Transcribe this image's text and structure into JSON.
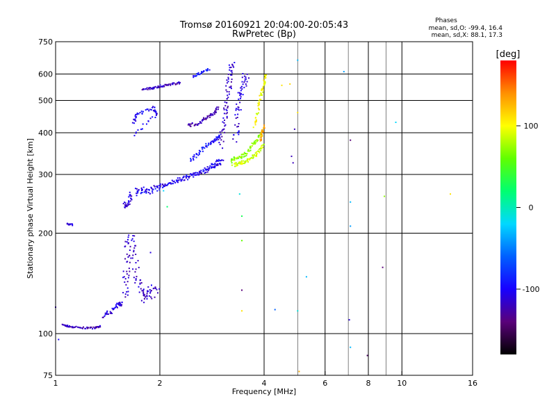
{
  "chart_data": {
    "type": "scatter",
    "title": "Tromsø 20160921 20:04:00-20:05:43",
    "subtitle": "RwPretec (Bp)",
    "xlabel": "Frequency [MHz]",
    "ylabel": "Stationary phase Virtual Height [km]",
    "x_scale": "log",
    "y_scale": "log",
    "xlim": [
      1,
      16
    ],
    "ylim": [
      75,
      750
    ],
    "x_ticks": [
      {
        "value": 1,
        "label": "1"
      },
      {
        "value": 2,
        "label": "2"
      },
      {
        "value": 4,
        "label": "4"
      },
      {
        "value": 6,
        "label": "6"
      },
      {
        "value": 8,
        "label": "8"
      },
      {
        "value": 10,
        "label": "10"
      },
      {
        "value": 16,
        "label": "16"
      }
    ],
    "y_ticks": [
      {
        "value": 75,
        "label": "75"
      },
      {
        "value": 100,
        "label": "100"
      },
      {
        "value": 200,
        "label": "200"
      },
      {
        "value": 300,
        "label": "300"
      },
      {
        "value": 400,
        "label": "400"
      },
      {
        "value": 500,
        "label": "500"
      },
      {
        "value": 600,
        "label": "600"
      },
      {
        "value": 750,
        "label": "750"
      }
    ],
    "x_grid": [
      2,
      4,
      6,
      8,
      10
    ],
    "x_minor_grid": [
      5,
      7,
      9
    ],
    "y_grid": [
      100,
      200,
      300,
      400,
      500,
      600
    ],
    "grid": true,
    "legend": {
      "title": "Phases",
      "placement": "top-right",
      "lines": [
        "mean, sd,O: -99.4, 16.4",
        "mean, sd,X: 88.1, 17.3"
      ]
    },
    "colorbar": {
      "label": "[deg]",
      "range": [
        -180,
        180
      ],
      "ticks": [
        {
          "value": 100,
          "label": "100"
        },
        {
          "value": 0,
          "label": "0"
        },
        {
          "value": -100,
          "label": "-100"
        }
      ],
      "colors": [
        "#000000",
        "#5a007a",
        "#1800ff",
        "#0060ff",
        "#00d8ff",
        "#00ff70",
        "#60ff00",
        "#ffff00",
        "#ff9000",
        "#ff0000"
      ]
    },
    "traces": [
      {
        "phase": -120,
        "spread": 0.004,
        "pts": [
          [
            1.05,
            106
          ],
          [
            1.1,
            105
          ],
          [
            1.2,
            104
          ],
          [
            1.3,
            104
          ],
          [
            1.35,
            105
          ]
        ]
      },
      {
        "phase": -115,
        "spread": 0.004,
        "pts": [
          [
            1.08,
            213
          ],
          [
            1.12,
            212
          ]
        ]
      },
      {
        "phase": -110,
        "spread": 0.01,
        "pts": [
          [
            1.38,
            113
          ],
          [
            1.45,
            117
          ],
          [
            1.52,
            122
          ],
          [
            1.55,
            124
          ]
        ]
      },
      {
        "phase": -115,
        "spread": 0.025,
        "pts": [
          [
            1.58,
            130
          ],
          [
            1.6,
            150
          ],
          [
            1.62,
            175
          ],
          [
            1.65,
            195
          ],
          [
            1.7,
            160
          ],
          [
            1.75,
            135
          ],
          [
            1.8,
            128
          ],
          [
            1.88,
            132
          ],
          [
            1.95,
            137
          ]
        ]
      },
      {
        "phase": -112,
        "spread": 0.012,
        "pts": [
          [
            1.58,
            242
          ],
          [
            1.62,
            246
          ],
          [
            1.66,
            262
          ]
        ]
      },
      {
        "phase": -108,
        "spread": 0.008,
        "pts": [
          [
            1.7,
            270
          ],
          [
            1.85,
            272
          ],
          [
            2.0,
            277
          ],
          [
            2.2,
            285
          ],
          [
            2.45,
            295
          ],
          [
            2.7,
            307
          ],
          [
            2.9,
            318
          ],
          [
            3.05,
            330
          ]
        ]
      },
      {
        "phase": -100,
        "spread": 0.008,
        "pts": [
          [
            1.7,
            262
          ],
          [
            1.9,
            266
          ],
          [
            2.1,
            280
          ],
          [
            2.3,
            292
          ],
          [
            2.55,
            302
          ],
          [
            2.8,
            318
          ],
          [
            3.0,
            335
          ]
        ]
      },
      {
        "phase": -95,
        "spread": 0.008,
        "pts": [
          [
            2.45,
            330
          ],
          [
            2.6,
            350
          ],
          [
            2.75,
            368
          ],
          [
            2.9,
            382
          ],
          [
            3.0,
            395
          ]
        ]
      },
      {
        "phase": -125,
        "spread": 0.008,
        "pts": [
          [
            2.4,
            420
          ],
          [
            2.55,
            425
          ],
          [
            2.7,
            440
          ],
          [
            2.85,
            455
          ],
          [
            2.95,
            475
          ]
        ]
      },
      {
        "phase": -120,
        "spread": 0.005,
        "pts": [
          [
            1.78,
            540
          ],
          [
            1.9,
            544
          ],
          [
            2.0,
            552
          ],
          [
            2.15,
            558
          ],
          [
            2.3,
            566
          ]
        ]
      },
      {
        "phase": -92,
        "spread": 0.006,
        "pts": [
          [
            2.5,
            590
          ],
          [
            2.65,
            606
          ],
          [
            2.78,
            622
          ]
        ]
      },
      {
        "phase": -115,
        "spread": 0.02,
        "pts": [
          [
            3.0,
            360
          ],
          [
            3.05,
            420
          ],
          [
            3.1,
            480
          ],
          [
            3.15,
            540
          ],
          [
            3.2,
            600
          ],
          [
            3.25,
            640
          ]
        ]
      },
      {
        "phase": -110,
        "spread": 0.02,
        "pts": [
          [
            3.3,
            380
          ],
          [
            3.35,
            450
          ],
          [
            3.42,
            520
          ],
          [
            3.5,
            560
          ],
          [
            3.55,
            600
          ]
        ]
      },
      {
        "phase": -105,
        "spread": 0.008,
        "pts": [
          [
            1.68,
            430
          ],
          [
            1.72,
            455
          ],
          [
            1.92,
            475
          ],
          [
            1.95,
            452
          ],
          [
            1.66,
            390
          ]
        ]
      },
      {
        "phase": 72,
        "spread": 0.01,
        "pts": [
          [
            3.2,
            330
          ],
          [
            3.35,
            336
          ],
          [
            3.5,
            342
          ],
          [
            3.65,
            358
          ],
          [
            3.8,
            380
          ],
          [
            3.95,
            400
          ]
        ]
      },
      {
        "phase": 88,
        "spread": 0.008,
        "pts": [
          [
            3.25,
            320
          ],
          [
            3.4,
            324
          ],
          [
            3.55,
            328
          ],
          [
            3.7,
            338
          ],
          [
            3.85,
            350
          ],
          [
            4.0,
            370
          ]
        ]
      },
      {
        "phase": 98,
        "spread": 0.008,
        "pts": [
          [
            3.75,
            420
          ],
          [
            3.85,
            470
          ],
          [
            3.92,
            520
          ],
          [
            4.0,
            560
          ],
          [
            4.05,
            600
          ]
        ]
      },
      {
        "phase": 130,
        "spread": 0.006,
        "pts": [
          [
            3.9,
            380
          ],
          [
            3.95,
            400
          ],
          [
            4.0,
            420
          ]
        ]
      }
    ],
    "stray_points": [
      [
        1.0,
        120,
        -120
      ],
      [
        1.02,
        96,
        -100
      ],
      [
        1.88,
        175,
        -110
      ],
      [
        2.05,
        268,
        -20
      ],
      [
        2.1,
        240,
        20
      ],
      [
        3.4,
        262,
        -10
      ],
      [
        3.45,
        225,
        30
      ],
      [
        3.45,
        190,
        60
      ],
      [
        3.45,
        135,
        -140
      ],
      [
        3.45,
        117,
        110
      ],
      [
        4.3,
        118,
        -60
      ],
      [
        4.8,
        340,
        -120
      ],
      [
        4.85,
        325,
        -120
      ],
      [
        4.9,
        410,
        -120
      ],
      [
        5.0,
        117,
        -10
      ],
      [
        5.0,
        660,
        -30
      ],
      [
        5.0,
        460,
        110
      ],
      [
        5.05,
        77,
        130
      ],
      [
        5.3,
        148,
        -30
      ],
      [
        6.8,
        610,
        -40
      ],
      [
        7.1,
        380,
        -140
      ],
      [
        7.1,
        248,
        -30
      ],
      [
        7.1,
        210,
        -40
      ],
      [
        7.05,
        110,
        -110
      ],
      [
        7.1,
        91,
        -30
      ],
      [
        7.95,
        86,
        -150
      ],
      [
        8.8,
        158,
        -140
      ],
      [
        8.9,
        258,
        70
      ],
      [
        9.6,
        430,
        -20
      ],
      [
        13.8,
        262,
        110
      ],
      [
        4.5,
        555,
        110
      ],
      [
        4.75,
        560,
        115
      ]
    ]
  }
}
